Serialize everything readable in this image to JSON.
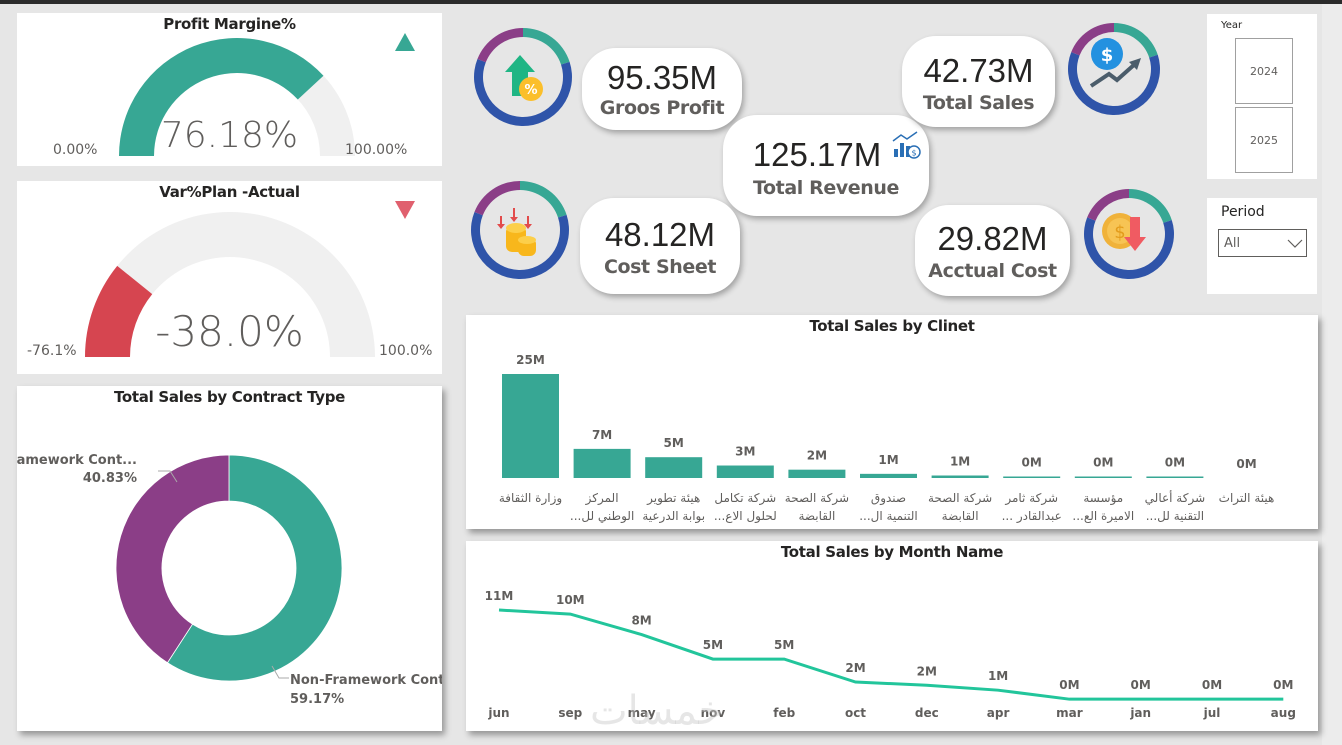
{
  "colors": {
    "teal": "#37a794",
    "purple": "#8b3e87",
    "blue": "#2f54a9",
    "red": "#d64550",
    "track": "#f0f0f0",
    "line": "#22c59b",
    "up_triangle": "#37a794",
    "down_triangle": "#e0606e"
  },
  "profit_margin": {
    "title": "Profit Margine%",
    "value_label": "76.18%",
    "value": 76.18,
    "min_label": "0.00%",
    "max_label": "100.00%",
    "min": 0,
    "max": 100,
    "trend": "up"
  },
  "var_plan_actual": {
    "title": "Var%Plan -Actual",
    "value_label": "-38.0%",
    "value": -38.0,
    "min_label": "-76.1%",
    "max_label": "100.0%",
    "min": -76.1,
    "max": 100,
    "trend": "down"
  },
  "kpis": {
    "gross_profit": {
      "value": "95.35M",
      "label": "Groos Profit",
      "icon": "house-arrow-percent-icon"
    },
    "total_revenue": {
      "value": "125.17M",
      "label": "Total Revenue",
      "icon": "bar-chart-dollar-icon"
    },
    "total_sales": {
      "value": "42.73M",
      "label": "Total Sales",
      "icon": "dollar-trend-up-icon"
    },
    "cost_sheet": {
      "value": "48.12M",
      "label": "Cost Sheet",
      "icon": "coins-down-arrows-icon"
    },
    "actual_cost": {
      "value": "29.82M",
      "label": "Acctual Cost",
      "icon": "coin-down-arrow-icon"
    }
  },
  "slicers": {
    "year": {
      "title": "Year",
      "options": [
        "2024",
        "2025"
      ]
    },
    "period": {
      "title": "Period",
      "selected": "All"
    }
  },
  "watermark": "خمسات",
  "chart_data": [
    {
      "id": "contract-type",
      "type": "pie",
      "title": "Total Sales by Contract Type",
      "donut": true,
      "slices": [
        {
          "label": "Non-Framework Contr...",
          "percent_label": "59.17%",
          "value": 59.17,
          "color": "#37a794"
        },
        {
          "label": "Framework Cont...",
          "percent_label": "40.83%",
          "value": 40.83,
          "color": "#8b3e87"
        }
      ]
    },
    {
      "id": "sales-by-client",
      "type": "bar",
      "title": "Total Sales by Clinet",
      "categories": [
        [
          "وزارة الثقافة",
          ""
        ],
        [
          "المركز",
          "...الوطني لل"
        ],
        [
          "هيئة تطوير",
          "بوابة الدرعية"
        ],
        [
          "شركة تكامل",
          "...لحلول الاع"
        ],
        [
          "شركة الصحة",
          "القابضة"
        ],
        [
          "صندوق",
          "...التنمية ال"
        ],
        [
          "شركة الصحة",
          "القابضة"
        ],
        [
          "شركة ثامر",
          "... عبدالقادر"
        ],
        [
          "مؤسسة",
          "...الاميرة الع"
        ],
        [
          "شركة أعالي",
          "...التقنية لل"
        ],
        [
          "هيئة التراث",
          ""
        ]
      ],
      "values": [
        25,
        7,
        5,
        3,
        2,
        1,
        0.6,
        0.2,
        0.15,
        0.1,
        0
      ],
      "data_labels": [
        "25M",
        "7M",
        "5M",
        "3M",
        "2M",
        "1M",
        "1M",
        "0M",
        "0M",
        "0M",
        "0M"
      ],
      "unit": "M",
      "ylim": [
        0,
        25
      ],
      "grid": false
    },
    {
      "id": "sales-by-month",
      "type": "line",
      "title": "Total Sales by Month Name",
      "x": [
        "jun",
        "sep",
        "may",
        "nov",
        "feb",
        "oct",
        "dec",
        "apr",
        "mar",
        "jan",
        "jul",
        "aug"
      ],
      "values": [
        11,
        10.5,
        8,
        5,
        5,
        2.2,
        1.8,
        1.2,
        0.1,
        0.1,
        0.1,
        0.1
      ],
      "data_labels": [
        "11M",
        "10M",
        "8M",
        "5M",
        "5M",
        "2M",
        "2M",
        "1M",
        "0M",
        "0M",
        "0M",
        "0M"
      ],
      "unit": "M",
      "ylim": [
        0,
        11
      ],
      "grid": false
    }
  ]
}
